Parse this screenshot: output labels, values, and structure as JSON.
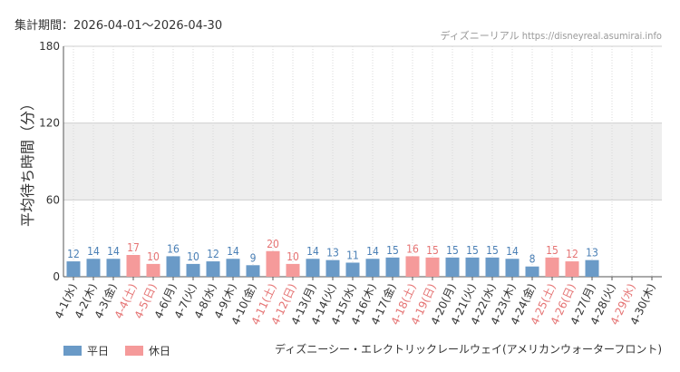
{
  "header": {
    "period_label": "集計期間：2026-04-01～2026-04-30",
    "credit_name": "ディズニーリアル",
    "credit_url": "https://disneyreal.asumirai.info"
  },
  "colors": {
    "weekday": "#6a9ac7",
    "holiday": "#f59a9a",
    "weekday_text": "#4a7fb5",
    "holiday_text": "#e57373",
    "band": "#eeeeee"
  },
  "legend": [
    {
      "label": "平日",
      "color": "#6a9ac7"
    },
    {
      "label": "休日",
      "color": "#f59a9a"
    }
  ],
  "attraction_name": "ディズニーシー・エレクトリックレールウェイ(アメリカンウォーターフロント)",
  "chart_data": {
    "type": "bar",
    "ylabel": "平均待ち時間（分）",
    "ylim": [
      0,
      180
    ],
    "yticks": [
      0,
      60,
      120,
      180
    ],
    "bands": [
      [
        60,
        120
      ]
    ],
    "categories": [
      "4-1(水)",
      "4-2(木)",
      "4-3(金)",
      "4-4(土)",
      "4-5(日)",
      "4-6(月)",
      "4-7(火)",
      "4-8(水)",
      "4-9(木)",
      "4-10(金)",
      "4-11(土)",
      "4-12(日)",
      "4-13(月)",
      "4-14(火)",
      "4-15(水)",
      "4-16(木)",
      "4-17(金)",
      "4-18(土)",
      "4-19(日)",
      "4-20(月)",
      "4-21(火)",
      "4-22(水)",
      "4-23(木)",
      "4-24(金)",
      "4-25(土)",
      "4-26(日)",
      "4-27(月)",
      "4-28(火)",
      "4-29(水)",
      "4-30(木)"
    ],
    "values": [
      12,
      14,
      14,
      17,
      10,
      16,
      10,
      12,
      14,
      9,
      20,
      10,
      14,
      13,
      11,
      14,
      15,
      16,
      15,
      15,
      15,
      15,
      14,
      8,
      15,
      12,
      13,
      null,
      null,
      null
    ],
    "day_type": [
      "平日",
      "平日",
      "平日",
      "休日",
      "休日",
      "平日",
      "平日",
      "平日",
      "平日",
      "平日",
      "休日",
      "休日",
      "平日",
      "平日",
      "平日",
      "平日",
      "平日",
      "休日",
      "休日",
      "平日",
      "平日",
      "平日",
      "平日",
      "平日",
      "休日",
      "休日",
      "平日",
      "平日",
      "休日",
      "平日"
    ]
  }
}
